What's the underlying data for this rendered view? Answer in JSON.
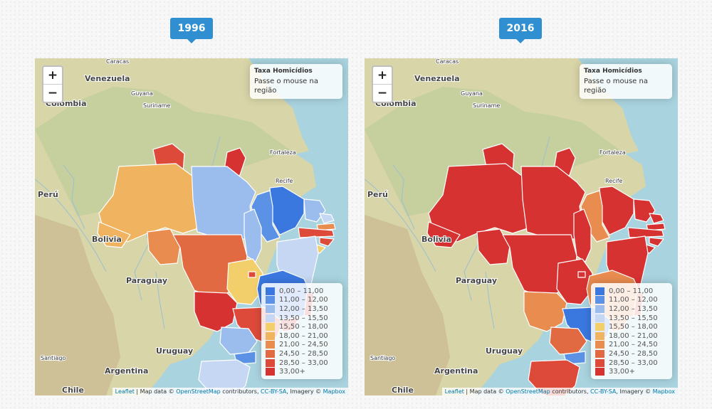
{
  "info_title": "Taxa Homicídios",
  "info_text": "Passe o mouse na região",
  "zoom_in": "+",
  "zoom_out": "−",
  "attribution": {
    "leaflet": "Leaflet",
    "sep1": " | Map data © ",
    "osm": "OpenStreetMap",
    "contrib": " contributors, ",
    "ccbysa": "CC-BY-SA",
    "imagery": ", Imagery © ",
    "mapbox": "Mapbox"
  },
  "legend": [
    {
      "label": "0,00 – 11,00",
      "color": "#3a78e0"
    },
    {
      "label": "11,00 – 12,00",
      "color": "#5b92e6"
    },
    {
      "label": "12,00 – 13,50",
      "color": "#9bbdee"
    },
    {
      "label": "13,50 – 15,50",
      "color": "#c5d7f3"
    },
    {
      "label": "15,50 – 18,00",
      "color": "#f2cf6b"
    },
    {
      "label": "18,00 – 21,00",
      "color": "#f0b461"
    },
    {
      "label": "21,00 – 24,50",
      "color": "#e98c50"
    },
    {
      "label": "24,50 – 28,50",
      "color": "#e26a43"
    },
    {
      "label": "28,50 – 33,00",
      "color": "#dd4a3a"
    },
    {
      "label": "33,00+",
      "color": "#d73232"
    }
  ],
  "place_labels": [
    {
      "text": "Caracas",
      "kind": "small"
    },
    {
      "text": "Venezuela",
      "kind": "country"
    },
    {
      "text": "Guyana",
      "kind": "small"
    },
    {
      "text": "Suriname",
      "kind": "small"
    },
    {
      "text": "Colombia",
      "kind": "country"
    },
    {
      "text": "Fortaleza",
      "kind": "small"
    },
    {
      "text": "Recife",
      "kind": "small"
    },
    {
      "text": "Perú",
      "kind": "country"
    },
    {
      "text": "Bolivia",
      "kind": "country"
    },
    {
      "text": "Paraguay",
      "kind": "country"
    },
    {
      "text": "Uruguay",
      "kind": "country"
    },
    {
      "text": "Argentina",
      "kind": "country"
    },
    {
      "text": "Santiago",
      "kind": "small"
    },
    {
      "text": "Chile",
      "kind": "country"
    }
  ],
  "maps": [
    {
      "year": "1996",
      "states": {
        "RR": 8,
        "AP": 9,
        "AM": 5,
        "PA": 2,
        "MA": 0,
        "PI": 1,
        "CE": 2,
        "RN": 3,
        "PB": 6,
        "PE": 8,
        "AL": 8,
        "SE": 4,
        "BA": 3,
        "TO": 2,
        "AC": 5,
        "RO": 6,
        "MT": 7,
        "GO": 4,
        "DF": 8,
        "MG": 0,
        "ES": 9,
        "MS": 9,
        "SP": 8,
        "RJ": 9,
        "PR": 2,
        "SC": 1,
        "RS": 3
      }
    },
    {
      "year": "2016",
      "states": {
        "RR": 9,
        "AP": 9,
        "AM": 9,
        "PA": 9,
        "MA": 9,
        "PI": 6,
        "CE": 9,
        "RN": 9,
        "PB": 9,
        "PE": 9,
        "AL": 9,
        "SE": 9,
        "BA": 9,
        "TO": 9,
        "AC": 9,
        "RO": 9,
        "MT": 9,
        "GO": 9,
        "DF": 9,
        "MG": 6,
        "ES": 8,
        "MS": 6,
        "SP": 0,
        "RJ": 6,
        "PR": 7,
        "SC": 1,
        "RS": 8
      }
    }
  ]
}
